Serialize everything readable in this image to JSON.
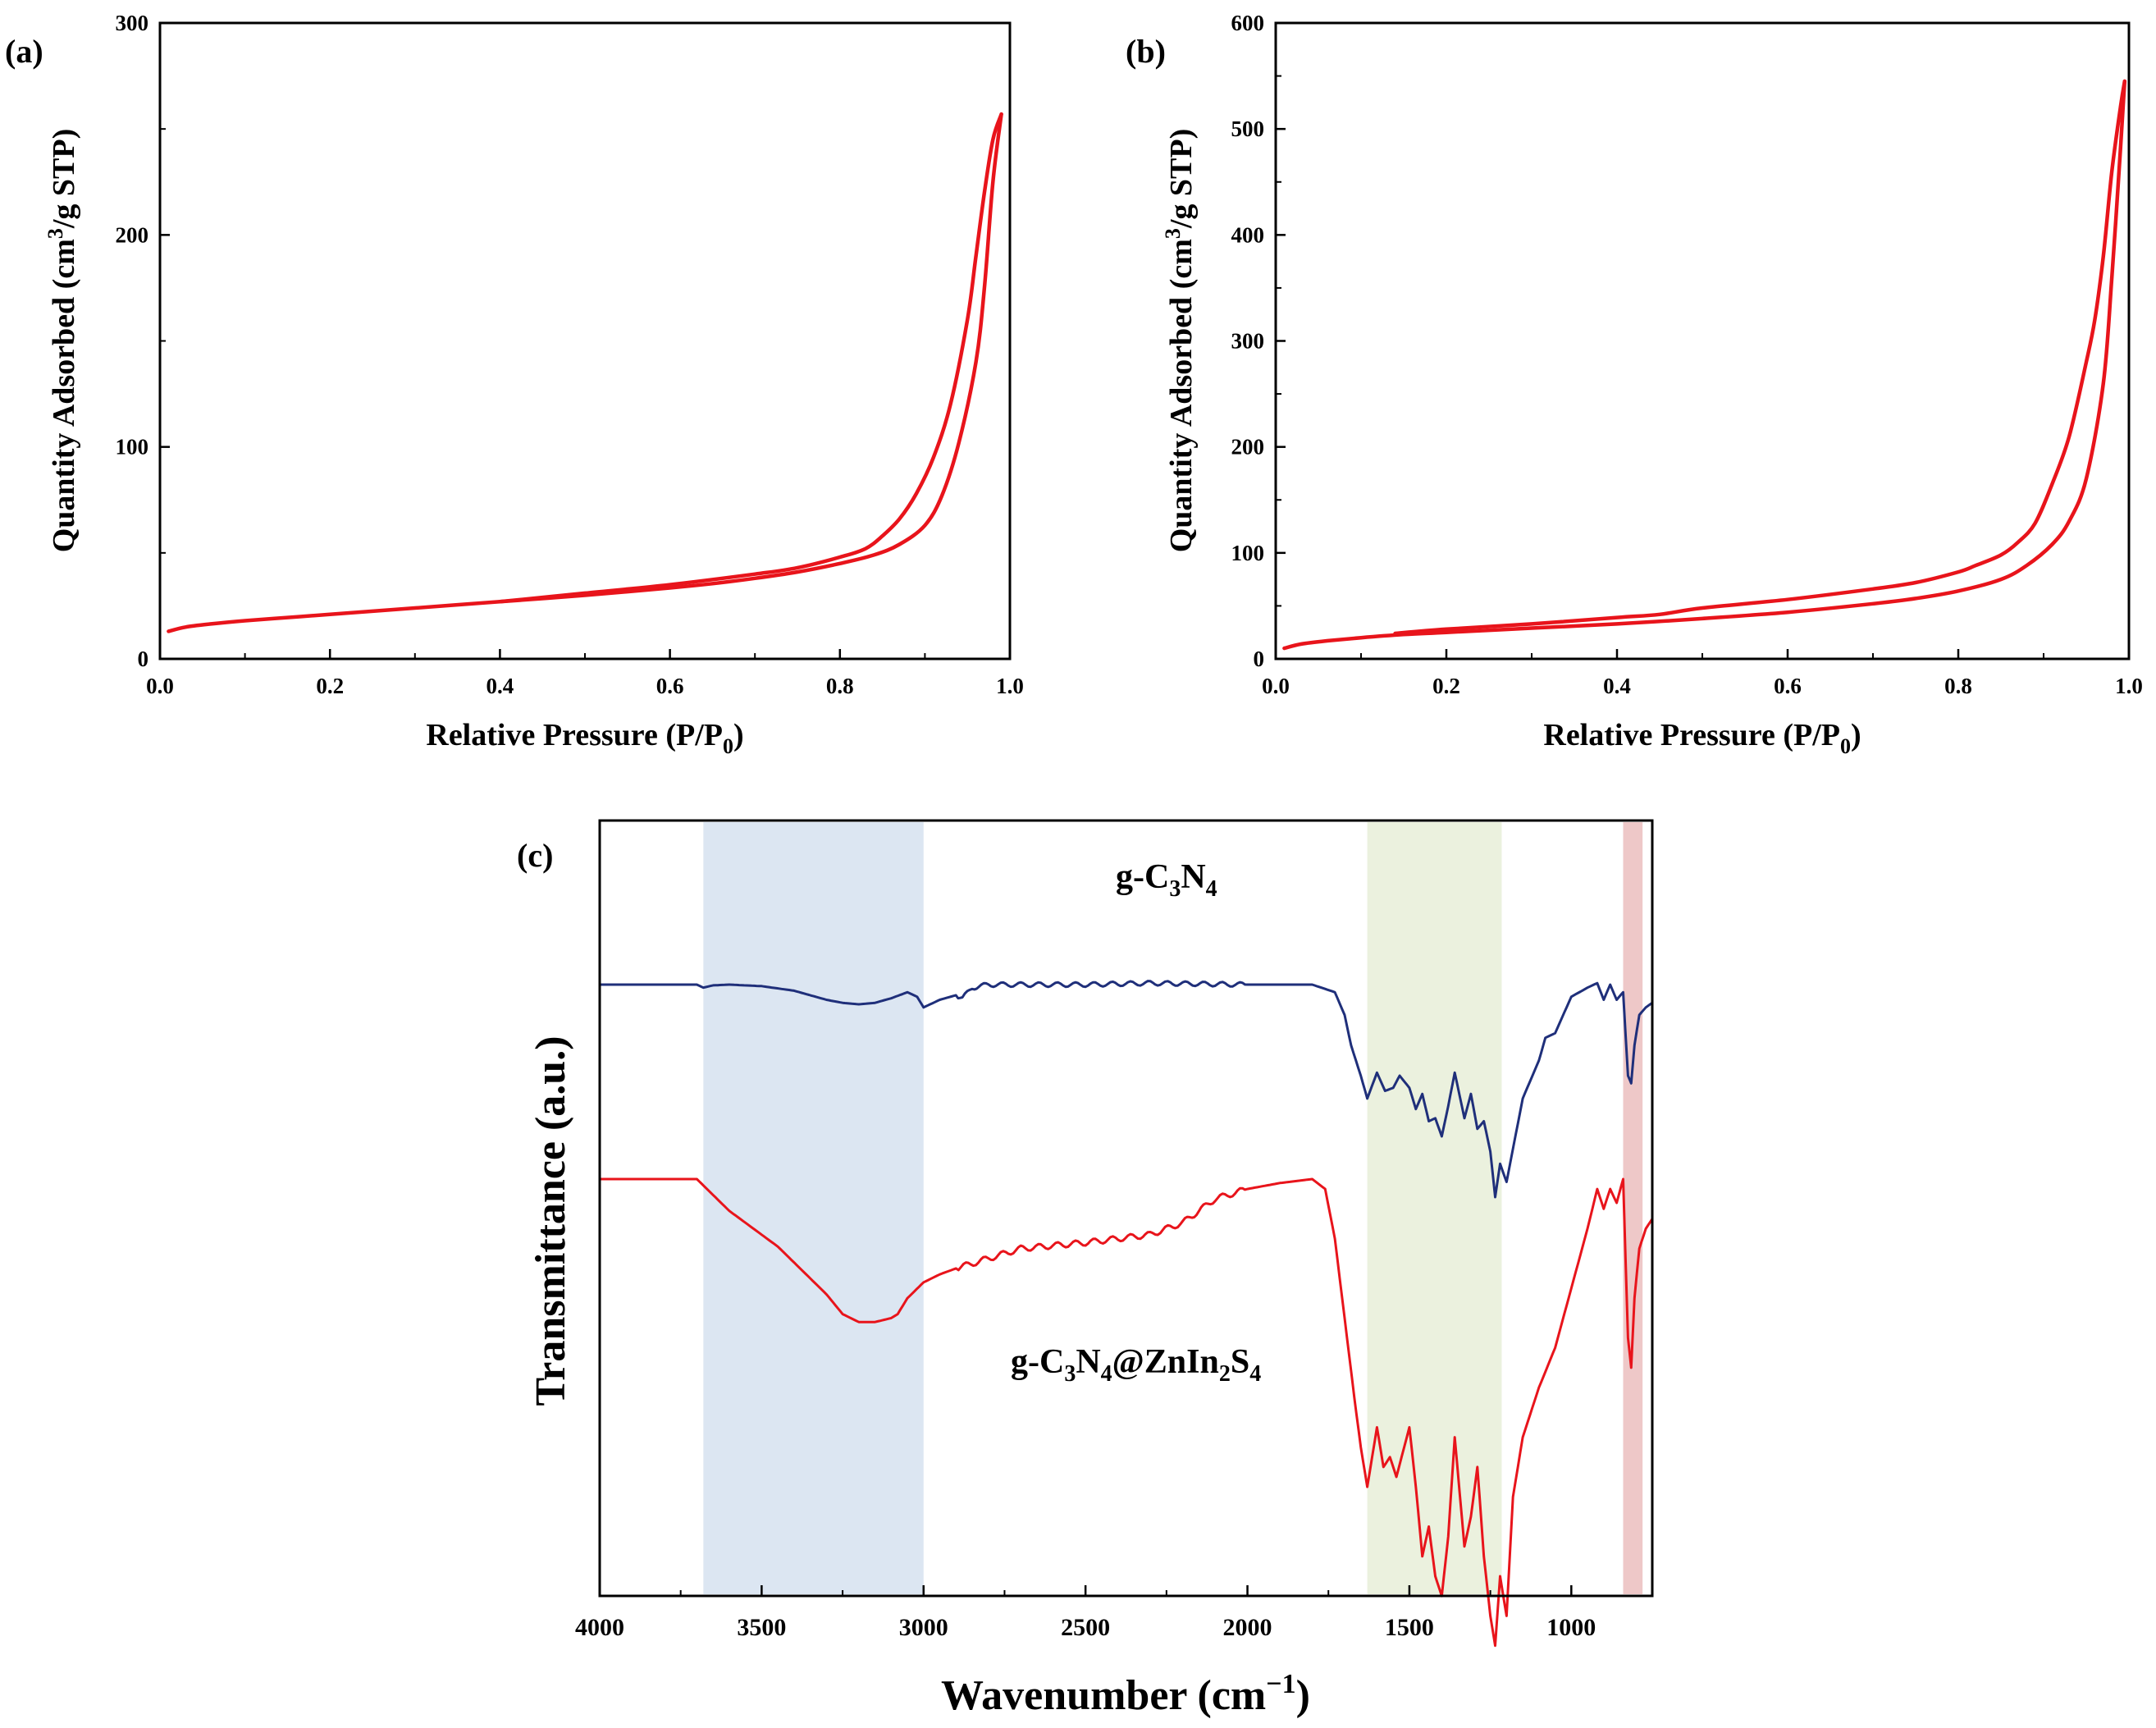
{
  "chart_data": [
    {
      "panel": "(a)",
      "type": "line",
      "xlabel": "Relative Pressure (P/P0)",
      "xlabel_main": "Relative Pressure (P/P",
      "xlabel_sub": "0",
      "xlabel_end": ")",
      "ylabel": "Quantity Adsorbed (cm3/g STP)",
      "ylabel_main": "Quantity Adsorbed (cm",
      "ylabel_sup": "3",
      "ylabel_end": "/g STP)",
      "xlim": [
        0.0,
        1.0
      ],
      "ylim": [
        0,
        300
      ],
      "xticks": [
        "0.0",
        "0.2",
        "0.4",
        "0.6",
        "0.8",
        "1.0"
      ],
      "yticks": [
        "0",
        "100",
        "200",
        "300"
      ],
      "line_color": "#e8141b",
      "series": [
        {
          "name": "adsorption",
          "x": [
            0.01,
            0.03,
            0.06,
            0.1,
            0.15,
            0.2,
            0.3,
            0.4,
            0.5,
            0.6,
            0.65,
            0.7,
            0.75,
            0.8,
            0.84,
            0.87,
            0.9,
            0.92,
            0.94,
            0.96,
            0.97,
            0.98,
            0.99
          ],
          "y": [
            13,
            15,
            16.5,
            18,
            19.5,
            21,
            24,
            27,
            30,
            33.5,
            35.5,
            38,
            41,
            45,
            49,
            54,
            63,
            77,
            102,
            140,
            175,
            225,
            257
          ]
        },
        {
          "name": "desorption",
          "x": [
            0.99,
            0.98,
            0.97,
            0.96,
            0.95,
            0.93,
            0.91,
            0.89,
            0.87,
            0.85,
            0.83,
            0.8,
            0.75,
            0.7,
            0.6,
            0.5,
            0.4
          ],
          "y": [
            257,
            245,
            220,
            190,
            160,
            120,
            95,
            78,
            66,
            58,
            52,
            48,
            43,
            40,
            35,
            31,
            27
          ]
        }
      ]
    },
    {
      "panel": "(b)",
      "type": "line",
      "xlabel": "Relative Pressure (P/P0)",
      "xlabel_main": "Relative Pressure (P/P",
      "xlabel_sub": "0",
      "xlabel_end": ")",
      "ylabel": "Quantity Adsorbed (cm3/g STP)",
      "ylabel_main": "Quantity Adsorbed (cm",
      "ylabel_sup": "3",
      "ylabel_end": "/g STP)",
      "xlim": [
        0.0,
        1.0
      ],
      "ylim": [
        0,
        600
      ],
      "xticks": [
        "0.0",
        "0.2",
        "0.4",
        "0.6",
        "0.8",
        "1.0"
      ],
      "yticks": [
        "0",
        "100",
        "200",
        "300",
        "400",
        "500",
        "600"
      ],
      "line_color": "#e8141b",
      "series": [
        {
          "name": "adsorption",
          "x": [
            0.01,
            0.03,
            0.06,
            0.1,
            0.15,
            0.2,
            0.3,
            0.4,
            0.5,
            0.6,
            0.7,
            0.75,
            0.8,
            0.85,
            0.88,
            0.91,
            0.93,
            0.95,
            0.97,
            0.98,
            0.99,
            0.995
          ],
          "y": [
            10,
            14,
            17,
            20,
            23,
            25,
            29,
            33,
            38,
            44,
            52,
            57,
            64,
            75,
            88,
            108,
            130,
            170,
            260,
            360,
            480,
            545
          ]
        },
        {
          "name": "desorption",
          "x": [
            0.995,
            0.99,
            0.98,
            0.97,
            0.96,
            0.95,
            0.93,
            0.91,
            0.89,
            0.87,
            0.85,
            0.82,
            0.8,
            0.75,
            0.7,
            0.6,
            0.5,
            0.45,
            0.4,
            0.3,
            0.2,
            0.14
          ],
          "y": [
            545,
            520,
            460,
            380,
            320,
            280,
            210,
            165,
            128,
            110,
            98,
            88,
            82,
            72,
            66,
            56,
            48,
            42,
            39,
            33,
            28,
            24
          ]
        }
      ]
    },
    {
      "panel": "(c)",
      "type": "line",
      "xlabel": "Wavenumber (cm−1)",
      "xlabel_main": "Wavenumber (cm",
      "xlabel_sup": "−1",
      "xlabel_end": ")",
      "ylabel": "Transmittance (a.u.)",
      "xlim": [
        4000,
        750
      ],
      "xticks": [
        "4000",
        "3500",
        "3000",
        "2500",
        "2000",
        "1500",
        "1000"
      ],
      "shaded_bands": [
        {
          "from": 3680,
          "to": 3000,
          "color": "#dce6f2"
        },
        {
          "from": 1630,
          "to": 1215,
          "color": "#ebf1de"
        },
        {
          "from": 840,
          "to": 780,
          "color": "#eec8c8"
        }
      ],
      "series": [
        {
          "name": "g-C3N4",
          "label_main": "g-C",
          "label_sub1": "3",
          "label_mid": "N",
          "label_sub2": "4",
          "color": "#1f2f7a",
          "x": [
            4000,
            3700,
            3680,
            3650,
            3600,
            3500,
            3400,
            3300,
            3250,
            3200,
            3150,
            3100,
            3050,
            3020,
            3000,
            2980,
            2950,
            2900,
            2880,
            2850,
            2800,
            2500,
            2300,
            2000,
            1800,
            1730,
            1700,
            1680,
            1650,
            1630,
            1600,
            1575,
            1550,
            1530,
            1500,
            1480,
            1460,
            1440,
            1420,
            1400,
            1380,
            1360,
            1330,
            1310,
            1290,
            1270,
            1250,
            1235,
            1220,
            1200,
            1150,
            1100,
            1080,
            1050,
            1000,
            950,
            920,
            900,
            880,
            860,
            840,
            825,
            815,
            805,
            790,
            770,
            750
          ],
          "y": [
            0.0,
            0.0,
            0.02,
            0.005,
            0.0,
            0.01,
            0.04,
            0.1,
            0.12,
            0.13,
            0.12,
            0.09,
            0.05,
            0.08,
            0.15,
            0.13,
            0.1,
            0.07,
            0.09,
            0.02,
            0.0,
            0.0,
            -0.01,
            0.0,
            0.0,
            0.05,
            0.2,
            0.4,
            0.6,
            0.75,
            0.58,
            0.7,
            0.68,
            0.6,
            0.68,
            0.82,
            0.72,
            0.9,
            0.88,
            1.0,
            0.8,
            0.58,
            0.88,
            0.72,
            0.95,
            0.9,
            1.1,
            1.4,
            1.18,
            1.3,
            0.75,
            0.5,
            0.35,
            0.32,
            0.08,
            0.02,
            -0.01,
            0.1,
            0.0,
            0.1,
            0.05,
            0.6,
            0.65,
            0.4,
            0.2,
            0.15,
            0.12
          ]
        },
        {
          "name": "g-C3N4@ZnIn2S4",
          "label_main": "g-C",
          "label_sub1": "3",
          "label_mid": "N",
          "label_sub2": "4",
          "label_mid2": "@ZnIn",
          "label_sub3": "2",
          "label_mid3": "S",
          "label_sub4": "4",
          "color": "#e8141b",
          "x": [
            4000,
            3700,
            3650,
            3600,
            3550,
            3500,
            3450,
            3400,
            3350,
            3300,
            3250,
            3200,
            3150,
            3100,
            3080,
            3050,
            3000,
            2950,
            2900,
            2800,
            2700,
            2500,
            2300,
            2200,
            2150,
            2100,
            2000,
            1900,
            1800,
            1760,
            1730,
            1700,
            1670,
            1650,
            1630,
            1600,
            1580,
            1560,
            1540,
            1500,
            1480,
            1460,
            1440,
            1420,
            1400,
            1380,
            1360,
            1330,
            1310,
            1290,
            1270,
            1250,
            1235,
            1220,
            1200,
            1180,
            1150,
            1120,
            1100,
            1050,
            1000,
            950,
            920,
            900,
            880,
            860,
            840,
            825,
            815,
            805,
            790,
            770,
            750
          ],
          "y": [
            0.0,
            0.0,
            0.08,
            0.16,
            0.22,
            0.28,
            0.34,
            0.42,
            0.5,
            0.58,
            0.68,
            0.72,
            0.72,
            0.7,
            0.68,
            0.6,
            0.52,
            0.48,
            0.45,
            0.4,
            0.35,
            0.32,
            0.28,
            0.22,
            0.16,
            0.1,
            0.05,
            0.02,
            0.0,
            0.05,
            0.3,
            0.7,
            1.1,
            1.35,
            1.55,
            1.25,
            1.45,
            1.4,
            1.5,
            1.25,
            1.55,
            1.9,
            1.75,
            2.0,
            2.1,
            1.8,
            1.3,
            1.85,
            1.7,
            1.45,
            1.9,
            2.2,
            2.35,
            2.0,
            2.2,
            1.6,
            1.3,
            1.15,
            1.05,
            0.85,
            0.55,
            0.25,
            0.05,
            0.15,
            0.05,
            0.12,
            0.0,
            0.8,
            0.95,
            0.6,
            0.35,
            0.25,
            0.2
          ]
        }
      ]
    }
  ]
}
